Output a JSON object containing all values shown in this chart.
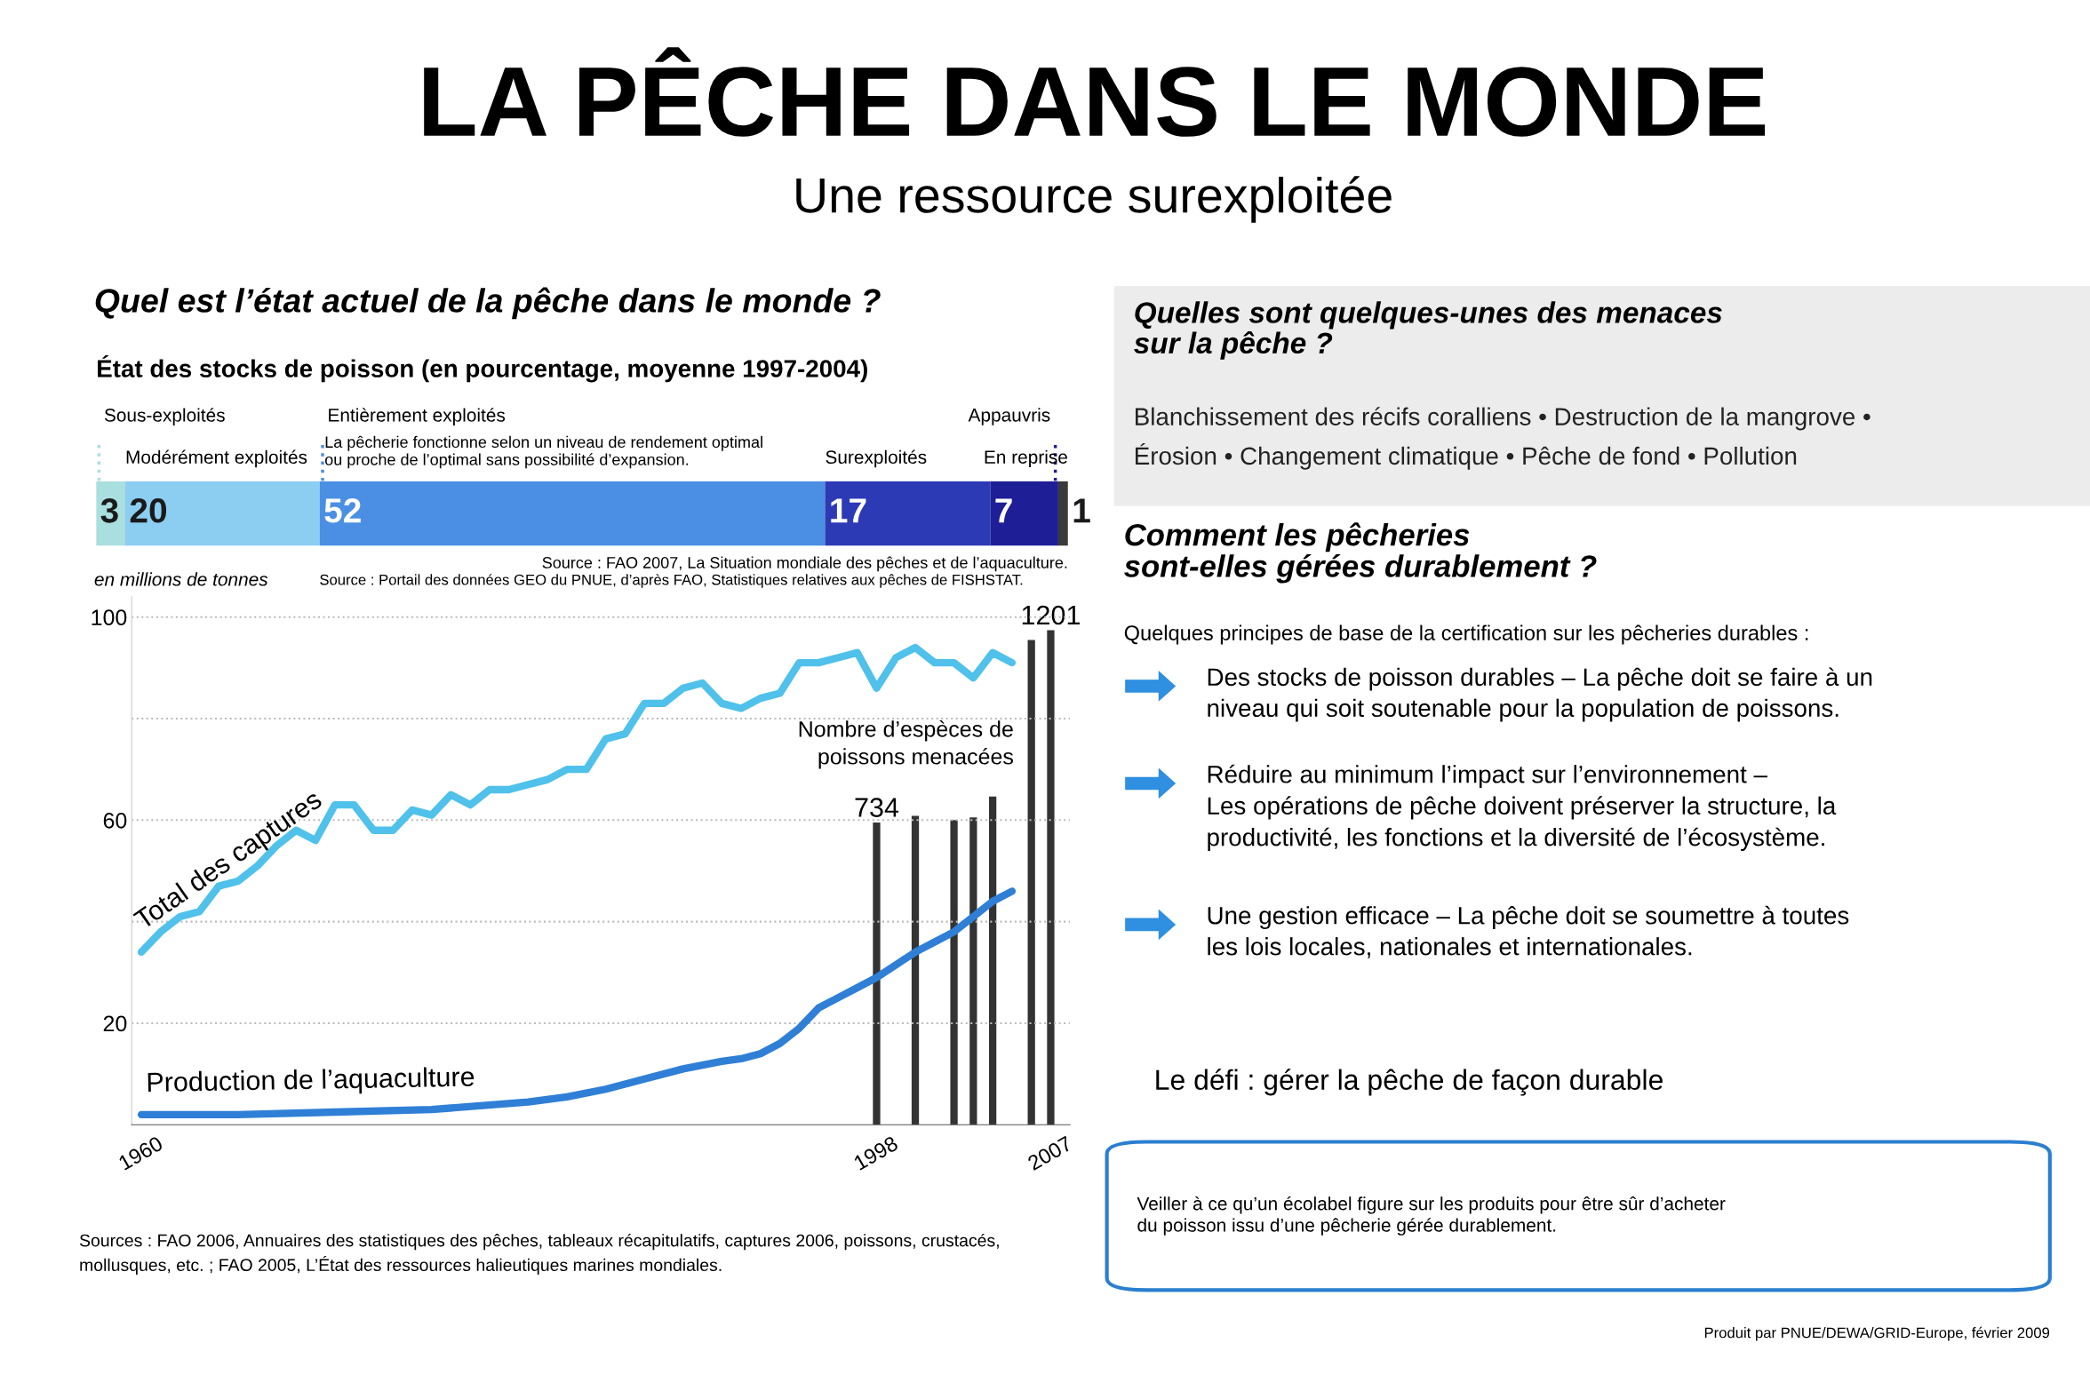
{
  "chart_data": [
    {
      "type": "other",
      "title": "LA PÊCHE DANS LE MONDE",
      "subtitle": "Une ressource surexploitée",
      "annotations": [
        "Quel est l’état actuel de la pêche dans le monde ?"
      ]
    },
    {
      "type": "bar",
      "orientation": "horizontal",
      "stacked": true,
      "data_labels": true,
      "title": "État des stocks de poisson (en pourcentage, moyenne 1997-2004)",
      "categories": [
        null
      ],
      "xlim": [
        0,
        100
      ],
      "tick_labels": false,
      "series": [
        {
          "name": "Sous-exploités",
          "color": "#aadfe0",
          "values": [
            3
          ]
        },
        {
          "name": "Modérément exploités",
          "color": "#8ccdf2",
          "values": [
            20
          ]
        },
        {
          "name": "Entièrement exploités",
          "color": "#4a8fe3",
          "values": [
            52
          ]
        },
        {
          "name": "Surexploités",
          "color": "#2d3ab5",
          "values": [
            17
          ]
        },
        {
          "name": "Appauvris",
          "color": "#1e1e96",
          "values": [
            7
          ]
        },
        {
          "name": "En reprise",
          "color": "#3a3a3a",
          "values": [
            1
          ]
        }
      ],
      "annotations": [
        "La pêcherie fonctionne selon un niveau de rendement optimal\nou proche de l’optimal sans possibilité d’expansion.",
        "Source : FAO 2007, La Situation mondiale des pêches et de l’aquaculture."
      ]
    },
    {
      "type": "line",
      "ylabel": "en millions de tonnes",
      "xlim": [
        1959.5,
        2008
      ],
      "ylim": [
        0,
        104
      ],
      "xticks": [
        1960,
        1998,
        2007
      ],
      "yticks": [
        20,
        {
          "value": 40,
          "label": null
        },
        60,
        {
          "value": 80,
          "label": null
        },
        100
      ],
      "y2lim": [
        0,
        1282
      ],
      "grid": "y",
      "series": [
        {
          "name": "Total des captures",
          "type": "line",
          "color": "#4fc1ea",
          "x": [
            1960,
            1961,
            1962,
            1963,
            1964,
            1965,
            1966,
            1967,
            1968,
            1969,
            1970,
            1971,
            1972,
            1973,
            1974,
            1975,
            1976,
            1977,
            1978,
            1979,
            1980,
            1981,
            1982,
            1983,
            1984,
            1985,
            1986,
            1987,
            1988,
            1989,
            1990,
            1991,
            1992,
            1993,
            1994,
            1995,
            1996,
            1997,
            1998,
            1999,
            2000,
            2001,
            2002,
            2003,
            2004,
            2005
          ],
          "values": [
            34,
            38,
            41,
            42,
            47,
            48,
            51,
            55,
            58,
            56,
            63,
            63,
            58,
            58,
            62,
            61,
            65,
            63,
            66,
            66,
            67,
            68,
            70,
            70,
            76,
            77,
            83,
            83,
            86,
            87,
            83,
            82,
            84,
            85,
            91,
            91,
            92,
            93,
            86,
            92,
            94,
            91,
            91,
            88,
            93,
            91
          ]
        },
        {
          "name": "Production de l’aquaculture",
          "type": "line",
          "color": "#2f7fd6",
          "x": [
            1960,
            1965,
            1970,
            1975,
            1980,
            1982,
            1984,
            1986,
            1988,
            1990,
            1991,
            1992,
            1993,
            1994,
            1995,
            1996,
            1997,
            1998,
            1999,
            2000,
            2001,
            2002,
            2003,
            2004,
            2005
          ],
          "values": [
            2,
            2,
            2.5,
            3,
            4.5,
            5.5,
            7,
            9,
            11,
            12.5,
            13,
            14,
            16,
            19,
            23,
            25,
            27,
            29,
            31.5,
            34,
            36,
            38,
            41,
            44,
            46
          ]
        },
        {
          "name": "Nombre d’espèces de\npoissons menacées",
          "type": "bar",
          "axis": "y2",
          "color": "#333333",
          "x": [
            1998,
            2000,
            2002,
            2003,
            2004,
            2006,
            2007
          ],
          "values": [
            734,
            750,
            740,
            746,
            797,
            1177,
            1201
          ],
          "value_labels": [
            "734",
            null,
            null,
            null,
            null,
            null,
            "1201"
          ]
        }
      ],
      "annotations": [
        "Source : Portail des données GEO du PNUE, d’après FAO, Statistiques relatives aux pêches de FISHSTAT.",
        "Sources : FAO 2006, Annuaires des statistiques des pêches, tableaux récapitulatifs, captures 2006, poissons, crustacés,\nmollusques, etc. ; FAO 2005, L’État des ressources halieutiques marines mondiales."
      ]
    },
    {
      "type": "other",
      "title": "Quelles sont quelques-unes des menaces\nsur la pêche ?",
      "annotations": [
        "Blanchissement des récifs coralliens • Destruction de la mangrove •\nÉrosion • Changement climatique • Pêche de fond • Pollution"
      ]
    },
    {
      "type": "other",
      "title": "Comment les pêcheries\nsont-elles gérées durablement ?",
      "subtitle": "Quelques principes de base de la certification sur les pêcheries durables :",
      "annotations": [
        "Des stocks de poisson durables – La pêche doit se faire à un\nniveau qui soit soutenable pour la population de poissons.",
        "Réduire au minimum l’impact sur l’environnement –\nLes opérations de pêche doivent préserver la structure, la\nproductivité, les fonctions et la diversité de l’écosystème.",
        "Une gestion efficace – La pêche doit se soumettre à toutes\nles lois locales, nationales et internationales."
      ]
    },
    {
      "type": "other",
      "title": "Le défi : gérer la pêche de façon durable",
      "annotations": [
        "Veiller à ce qu’un écolabel figure sur les produits pour être sûr d’acheter\ndu poisson issu d’une pêcherie gérée durablement.",
        "Produit par PNUE/DEWA/GRID-Europe, février 2009"
      ]
    }
  ]
}
